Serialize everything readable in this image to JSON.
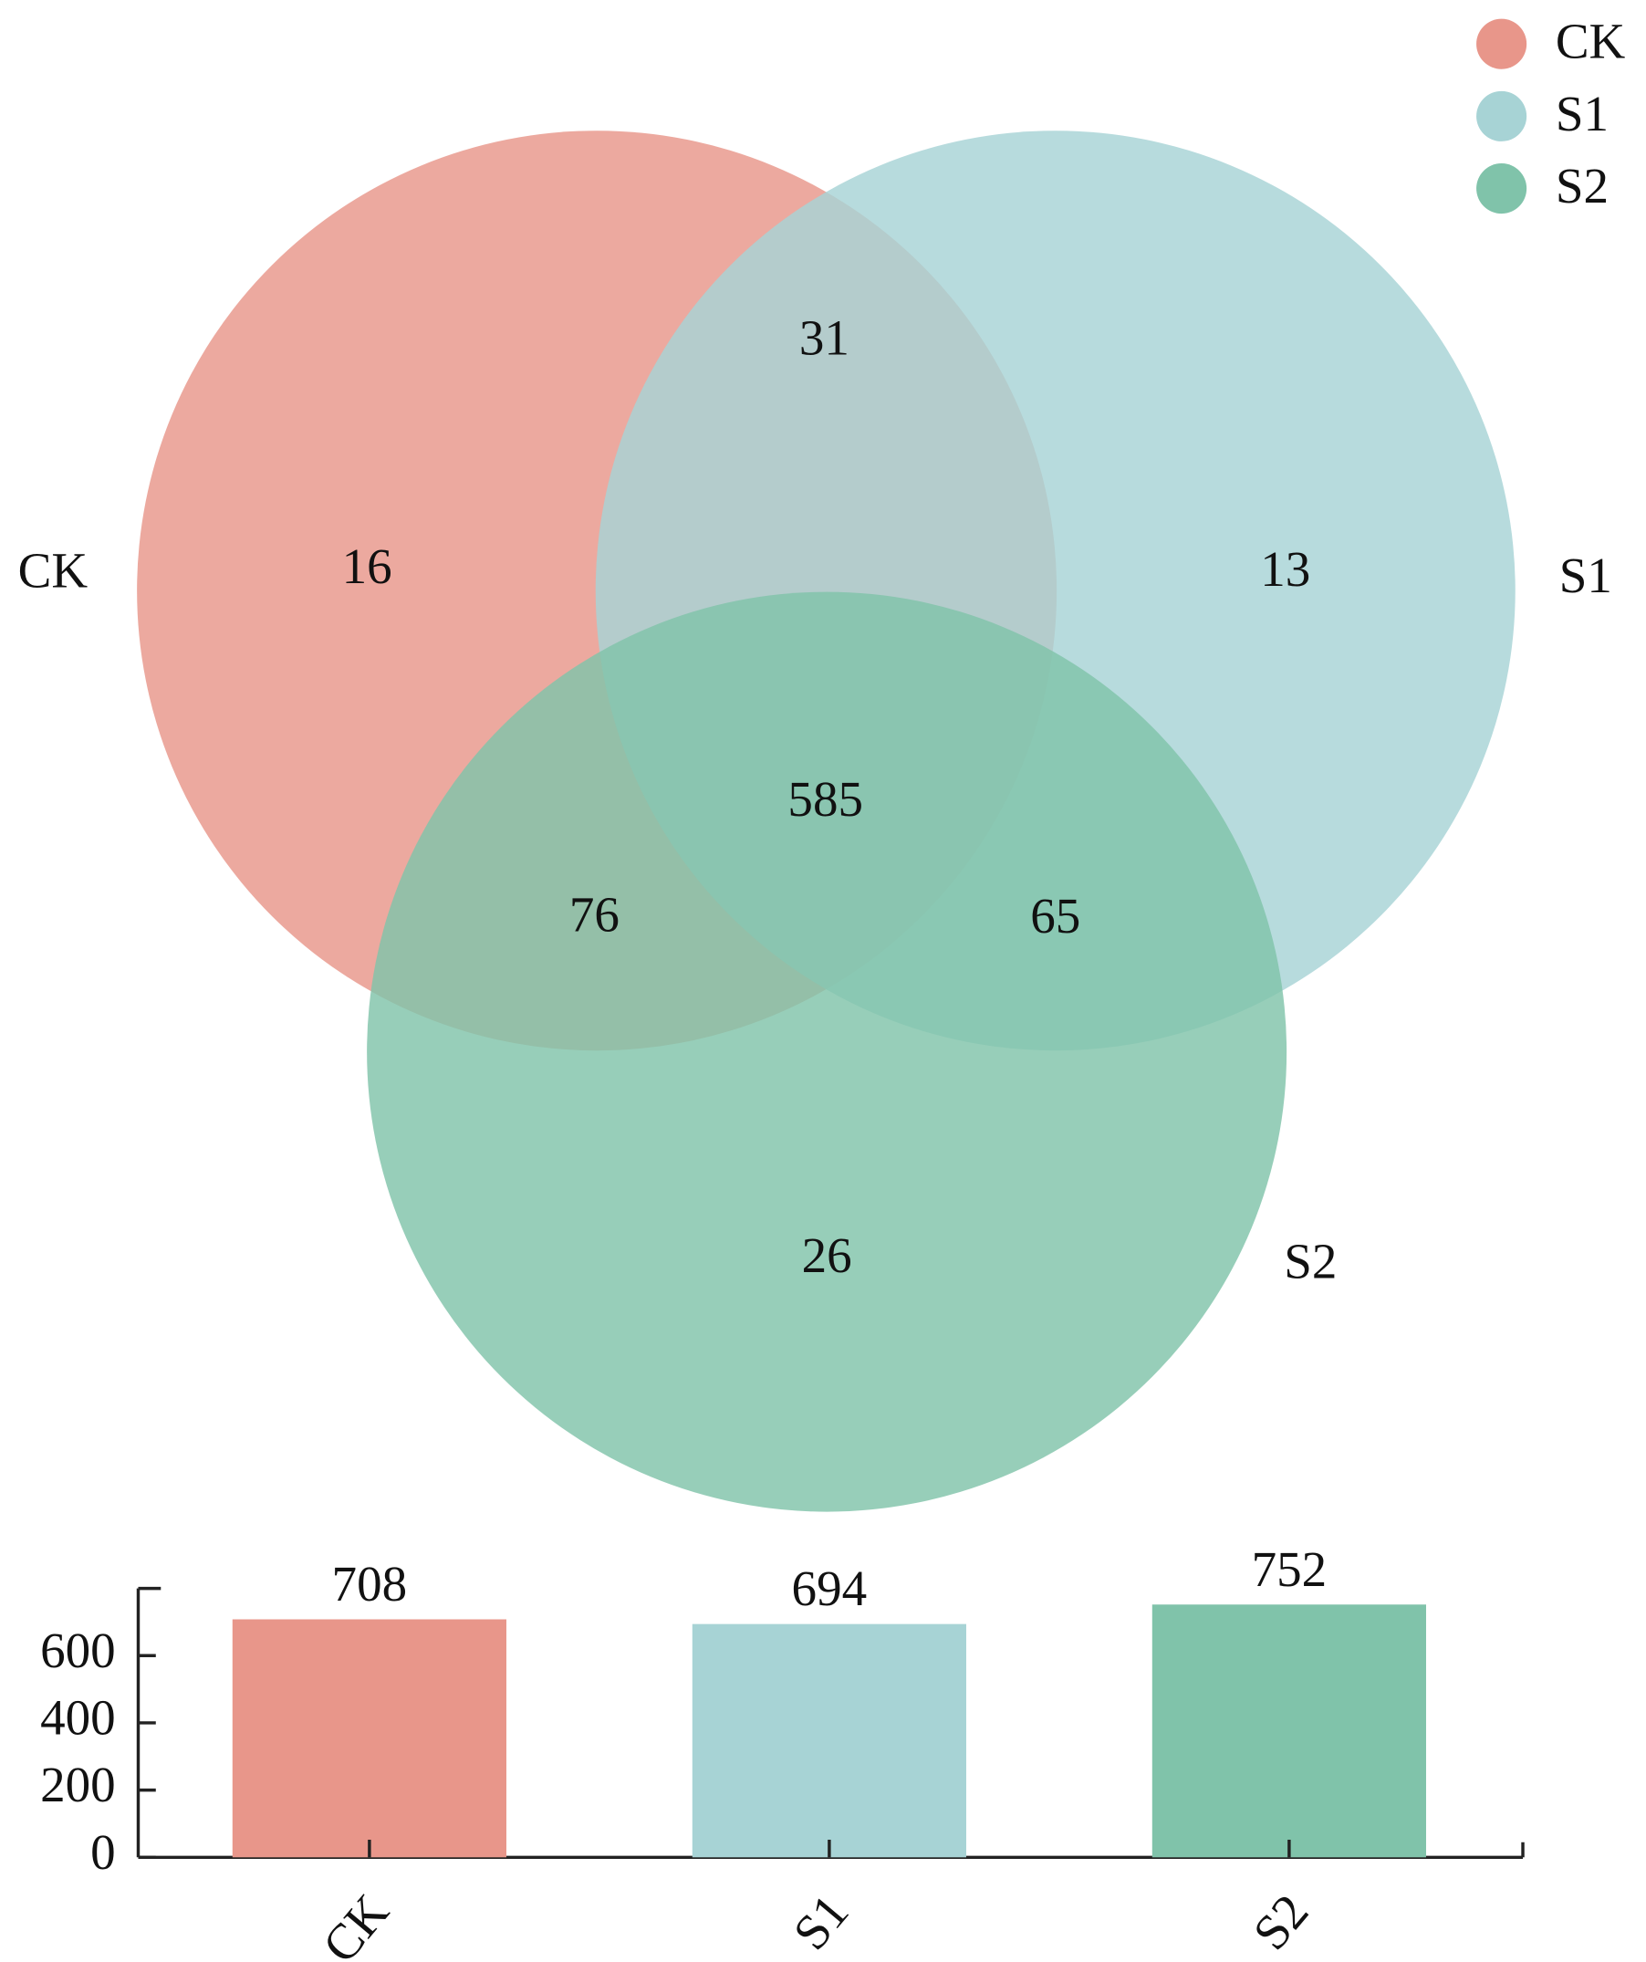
{
  "chart_data": [
    {
      "type": "venn",
      "sets": [
        {
          "name": "CK",
          "color": "#e8968a"
        },
        {
          "name": "S1",
          "color": "#a7d3d5"
        },
        {
          "name": "S2",
          "color": "#80c3aa"
        }
      ],
      "regions": [
        {
          "sets": [
            "CK"
          ],
          "value": 16
        },
        {
          "sets": [
            "S1"
          ],
          "value": 13
        },
        {
          "sets": [
            "S2"
          ],
          "value": 26
        },
        {
          "sets": [
            "CK",
            "S1"
          ],
          "value": 31
        },
        {
          "sets": [
            "CK",
            "S2"
          ],
          "value": 76
        },
        {
          "sets": [
            "S1",
            "S2"
          ],
          "value": 65
        },
        {
          "sets": [
            "CK",
            "S1",
            "S2"
          ],
          "value": 585
        }
      ],
      "legend": "top-right"
    },
    {
      "type": "bar",
      "categories": [
        "CK",
        "S1",
        "S2"
      ],
      "values": [
        708,
        694,
        752
      ],
      "colors": [
        "#e8968a",
        "#a7d3d5",
        "#80c3aa"
      ],
      "ylim": [
        0,
        800
      ],
      "yticks": [
        0,
        200,
        400,
        600
      ]
    }
  ]
}
